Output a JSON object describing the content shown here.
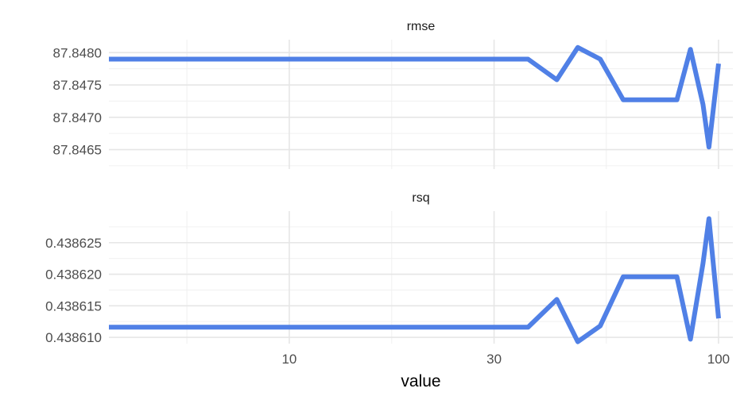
{
  "chart_data": {
    "type": "line",
    "xlabel": "value",
    "xscale": "log10",
    "xlim": [
      3.8,
      108
    ],
    "x_ticks": [
      10,
      30,
      100
    ],
    "x_tick_labels": [
      "10",
      "30",
      "100"
    ],
    "color": "#5080e6",
    "grid": true,
    "x": [
      3.8,
      36,
      42,
      47,
      53,
      60,
      80,
      86,
      92,
      95,
      100
    ],
    "panels": [
      {
        "strip": "rmse",
        "ylim": [
          87.8462,
          87.8482
        ],
        "y_ticks": [
          87.8465,
          87.847,
          87.8475,
          87.848
        ],
        "y_tick_labels": [
          "87.8465",
          "87.8470",
          "87.8475",
          "87.8480"
        ],
        "values": [
          87.8479,
          87.8479,
          87.84758,
          87.84808,
          87.8479,
          87.84727,
          87.84727,
          87.84805,
          87.8472,
          87.84654,
          87.84783
        ]
      },
      {
        "strip": "rsq",
        "ylim": [
          0.438609,
          0.43863
        ],
        "y_ticks": [
          0.43861,
          0.438615,
          0.43862,
          0.438625
        ],
        "y_tick_labels": [
          "0.438610",
          "0.438615",
          "0.438620",
          "0.438625"
        ],
        "values": [
          0.4386116,
          0.4386116,
          0.438616,
          0.4386093,
          0.4386118,
          0.4386196,
          0.4386196,
          0.4386097,
          0.4386217,
          0.4386288,
          0.438613
        ]
      }
    ]
  }
}
